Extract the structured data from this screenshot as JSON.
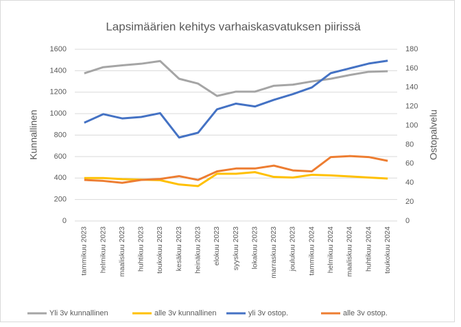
{
  "chart_data": {
    "type": "line",
    "title": "Lapsimäärien kehitys varhaiskasvatuksen piirissä",
    "y_label": "Kunnallinen",
    "y2_label": "Ostopalvelu",
    "categories": [
      "tammikuu 2023",
      "helmikuu 2023",
      "maaliskuu 2023",
      "huhtikuu 2023",
      "toukokuu 2023",
      "kesäkuu 2023",
      "heinäkuu 2023",
      "elokuu 2023",
      "syyskuu 2023",
      "lokakuu 2023",
      "marraskuu 2023",
      "joulukuu 2023",
      "tammikuu 2024",
      "helmikuu 2024",
      "maaliskuu 2024",
      "huhtikuu 2024",
      "toukokuu 2024"
    ],
    "series": [
      {
        "name": "Yli 3v kunnallinen",
        "color": "#a5a5a5",
        "axis": "y",
        "values": [
          1376,
          1433,
          1450,
          1465,
          1490,
          1325,
          1280,
          1165,
          1205,
          1205,
          1260,
          1270,
          1300,
          1325,
          1360,
          1390,
          1395
        ]
      },
      {
        "name": "alle 3v kunnallinen",
        "color": "#ffc000",
        "axis": "y",
        "values": [
          400,
          400,
          390,
          385,
          380,
          340,
          325,
          440,
          440,
          455,
          410,
          405,
          430,
          425,
          415,
          405,
          395
        ]
      },
      {
        "name": "yli 3v ostop.",
        "color": "#4472c4",
        "axis": "y2",
        "values": [
          103,
          112,
          107.5,
          109,
          113,
          87.5,
          92.5,
          117,
          123,
          120,
          127,
          133,
          140,
          155,
          160,
          165,
          168
        ]
      },
      {
        "name": "alle 3v ostop.",
        "color": "#ed7d31",
        "axis": "y2",
        "values": [
          43,
          42,
          40,
          43,
          44,
          47,
          43,
          52,
          55,
          55,
          58,
          53,
          52,
          67,
          68,
          67,
          63
        ]
      }
    ],
    "ylim": [
      0,
      1600
    ],
    "yticks": [
      0,
      200,
      400,
      600,
      800,
      1000,
      1200,
      1400,
      1600
    ],
    "y2lim": [
      0,
      180
    ],
    "y2ticks": [
      0,
      20,
      40,
      60,
      80,
      100,
      120,
      140,
      160,
      180
    ],
    "grid": true,
    "legend": "bottom"
  }
}
